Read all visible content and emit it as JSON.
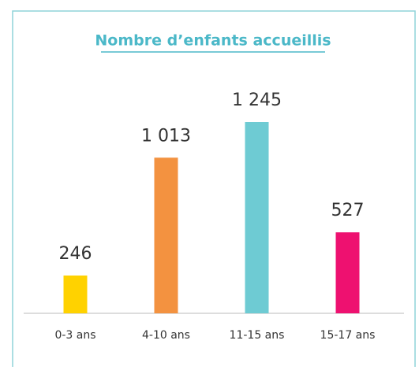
{
  "chart_data": {
    "type": "bar",
    "title": "Nombre d’enfants accueillis",
    "categories": [
      "0-3 ans",
      "4-10 ans",
      "11-15 ans",
      "15-17 ans"
    ],
    "values": [
      246,
      1013,
      1245,
      527
    ],
    "value_labels": [
      "246",
      "1 013",
      "1 245",
      "527"
    ],
    "colors": [
      "#ffd200",
      "#f39240",
      "#6ecbd3",
      "#ee1170"
    ]
  }
}
